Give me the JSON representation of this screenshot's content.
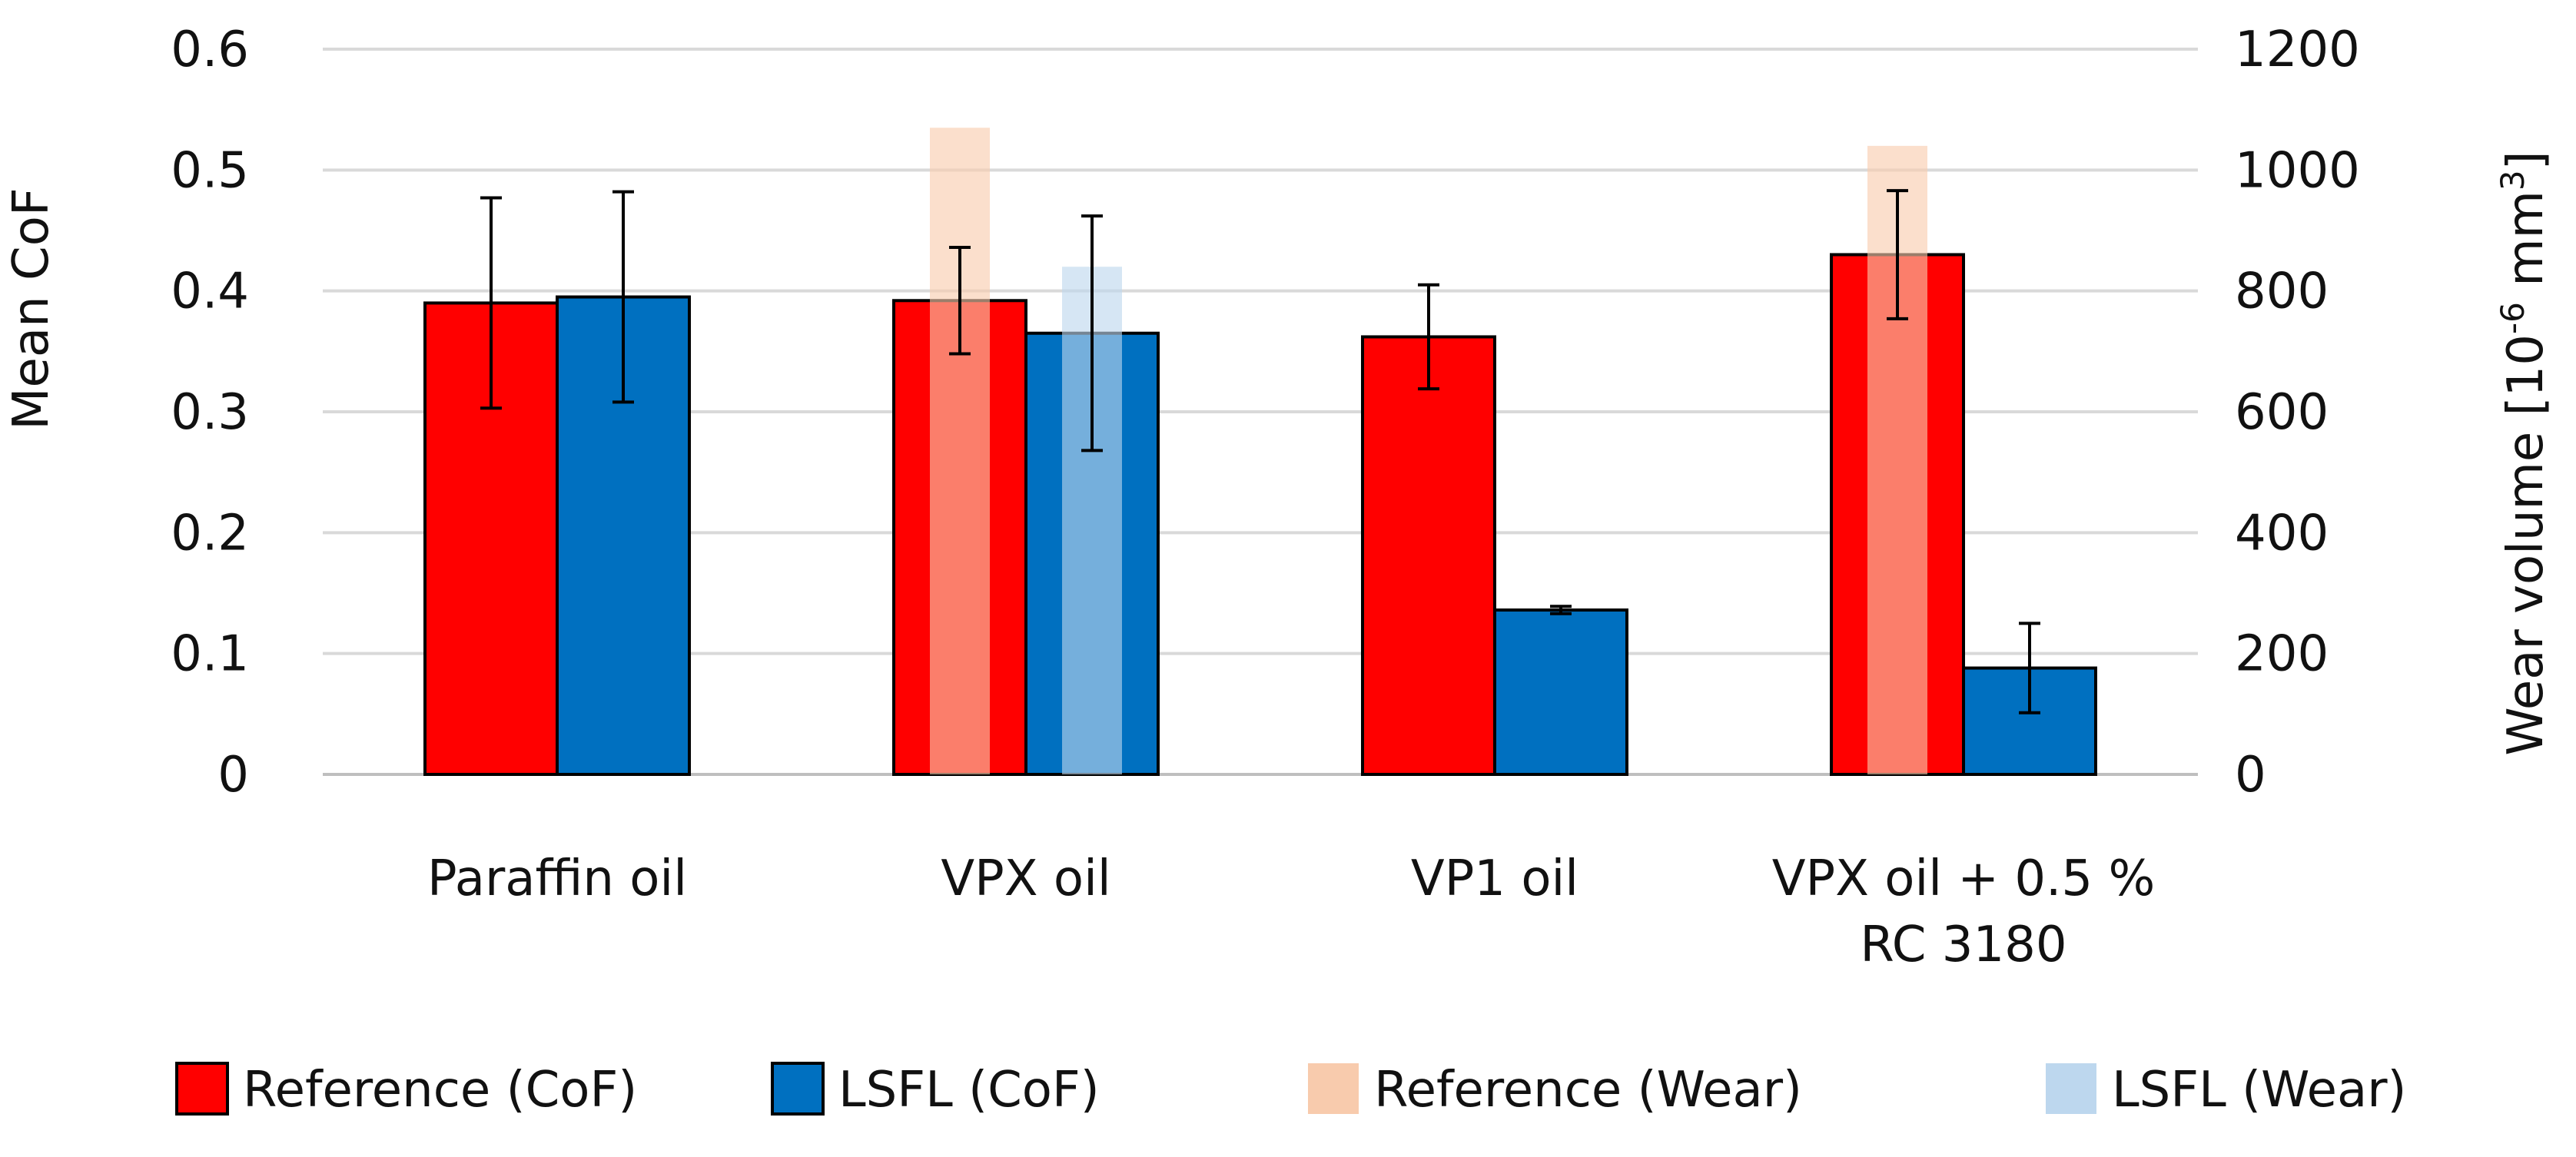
{
  "chart_data": {
    "type": "bar",
    "categories": [
      "Paraffin oil",
      "VPX oil",
      "VP1 oil",
      "VPX oil + 0.5 %\nRC 3180"
    ],
    "y_left": {
      "label": "Mean CoF",
      "min": 0,
      "max": 0.6,
      "ticks": [
        0,
        0.1,
        0.2,
        0.3,
        0.4,
        0.5,
        0.6
      ],
      "tick_labels": [
        "0",
        "0.1",
        "0.2",
        "0.3",
        "0.4",
        "0.5",
        "0.6"
      ]
    },
    "y_right": {
      "label_prefix": "Wear volume [10",
      "label_exponent": "-6",
      "label_unit": " mm",
      "label_unit_exponent": "3",
      "label_suffix": "]",
      "min": 0,
      "max": 1200,
      "ticks": [
        0,
        200,
        400,
        600,
        800,
        1000,
        1200
      ],
      "tick_labels": [
        "0",
        "200",
        "400",
        "600",
        "800",
        "1000",
        "1200"
      ]
    },
    "series": [
      {
        "name": "Reference (CoF)",
        "axis": "left",
        "color": "#ff0000",
        "values": [
          0.39,
          0.392,
          0.362,
          0.43
        ],
        "errors": [
          0.087,
          0.044,
          0.043,
          0.053
        ]
      },
      {
        "name": "LSFL (CoF)",
        "axis": "left",
        "color": "#0070c0",
        "values": [
          0.395,
          0.365,
          0.136,
          0.088
        ],
        "errors": [
          0.087,
          0.097,
          0.003,
          0.037
        ]
      },
      {
        "name": "Reference (Wear)",
        "axis": "right",
        "color": "#f8cbad",
        "values": [
          null,
          1070,
          null,
          1040
        ],
        "errors": [
          null,
          null,
          null,
          null
        ]
      },
      {
        "name": "LSFL (Wear)",
        "axis": "right",
        "color": "#bdd7ee",
        "values": [
          null,
          840,
          null,
          null
        ],
        "errors": [
          null,
          null,
          null,
          null
        ]
      }
    ],
    "grid": true,
    "legend_position": "bottom"
  }
}
